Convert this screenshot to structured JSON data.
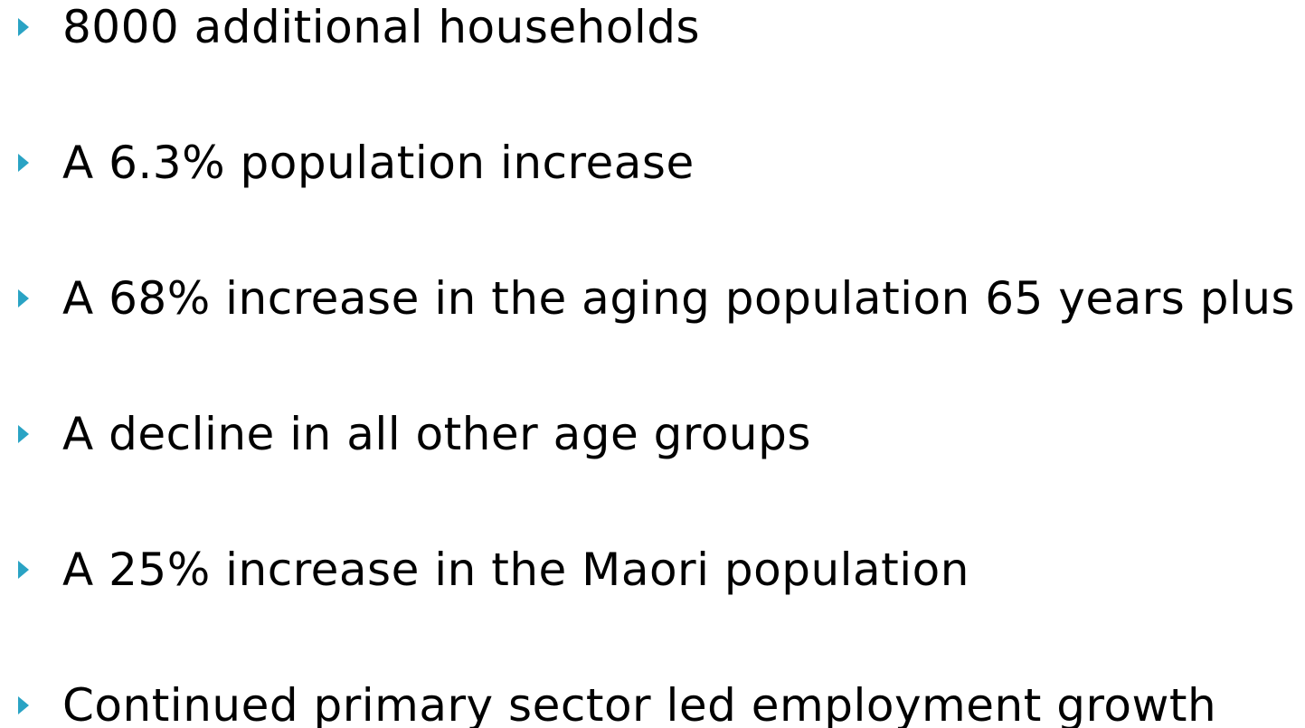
{
  "bullets": [
    "8000 additional households",
    "A 6.3% population increase",
    "A 68% increase in the aging population 65 years plus",
    "A decline in all other age groups",
    "A 25% increase in the Maori population",
    "Continued primary sector led employment growth"
  ]
}
